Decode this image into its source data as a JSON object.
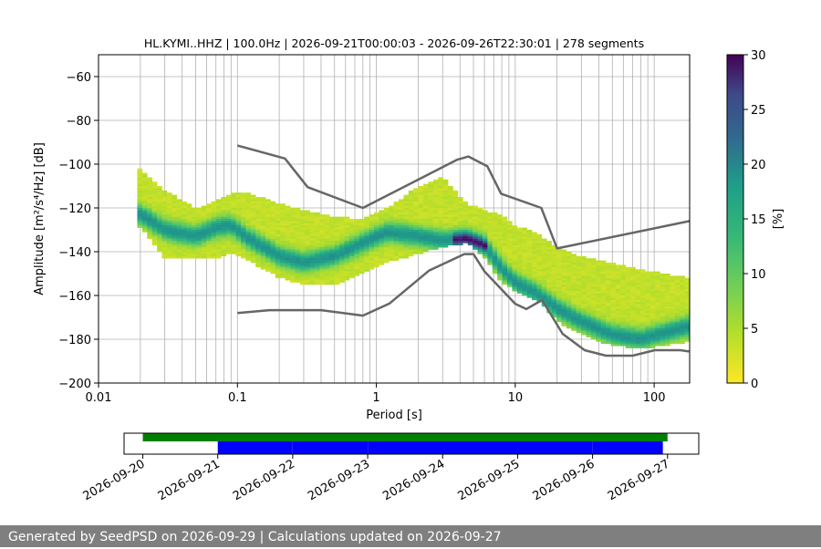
{
  "title": "HL.KYMI..HHZ | 100.0Hz | 2026-09-21T00:00:03 - 2026-09-26T22:30:01 | 278 segments",
  "footer": "Generated by SeedPSD on 2026-09-29 | Calculations updated on 2026-09-27",
  "colors": {
    "noise_model": "#666666",
    "coverage_total": "#008000",
    "coverage_segments": "#0000ff",
    "footer_bg": "#7f7f7f"
  },
  "chart_data": [
    {
      "type": "heatmap",
      "title": "HL.KYMI..HHZ | 100.0Hz | 2026-09-21T00:00:03 - 2026-09-26T22:30:01 | 278 segments",
      "xlabel": "Period [s]",
      "ylabel": "Amplitude [m²/s⁴/Hz] [dB]",
      "xscale": "log",
      "xlim": [
        0.01,
        180
      ],
      "ylim": [
        -200,
        -50
      ],
      "xticks": [
        0.01,
        0.1,
        1,
        10,
        100
      ],
      "xtick_labels": [
        "0.01",
        "0.1",
        "1",
        "10",
        "100"
      ],
      "yticks": [
        -200,
        -180,
        -160,
        -140,
        -120,
        -100,
        -80,
        -60
      ],
      "grid": true,
      "colorbar": {
        "label": "[%]",
        "range": [
          0,
          30
        ],
        "ticks": [
          0,
          5,
          10,
          15,
          20,
          25,
          30
        ],
        "colormap": "viridis_r"
      },
      "mode_curve": {
        "name": "mode",
        "period": [
          0.02,
          0.03,
          0.05,
          0.07,
          0.09,
          0.12,
          0.2,
          0.3,
          0.5,
          0.8,
          1.2,
          2,
          3,
          4.5,
          6,
          8,
          10,
          15,
          20,
          30,
          50,
          80,
          120,
          180
        ],
        "db": [
          -123,
          -130,
          -133,
          -129,
          -128,
          -134,
          -142,
          -145,
          -142,
          -136,
          -131,
          -133,
          -135,
          -134,
          -137,
          -148,
          -154,
          -160,
          -166,
          -172,
          -178,
          -180,
          -177,
          -174
        ]
      },
      "spread": {
        "period": [
          0.02,
          0.03,
          0.05,
          0.07,
          0.09,
          0.12,
          0.2,
          0.3,
          0.5,
          0.8,
          1.2,
          2,
          3,
          4.5,
          6,
          8,
          10,
          15,
          20,
          30,
          50,
          80,
          120,
          180
        ],
        "upper_db": [
          -102,
          -112,
          -120,
          -117,
          -113,
          -113,
          -118,
          -121,
          -124,
          -125,
          -120,
          -110,
          -106,
          -118,
          -121,
          -123,
          -128,
          -132,
          -138,
          -142,
          -145,
          -148,
          -150,
          -152
        ],
        "lower_db": [
          -129,
          -143,
          -143,
          -143,
          -141,
          -144,
          -152,
          -155,
          -155,
          -150,
          -145,
          -141,
          -138,
          -136,
          -143,
          -154,
          -158,
          -163,
          -172,
          -178,
          -183,
          -184,
          -183,
          -181
        ]
      },
      "noise_models": [
        {
          "name": "high_noise_model",
          "period": [
            0.1,
            0.22,
            0.32,
            0.8,
            3.8,
            4.6,
            6.3,
            7.9,
            15.4,
            20,
            354.8
          ],
          "db": [
            -91.5,
            -97.4,
            -110.5,
            -120,
            -98,
            -96.5,
            -101,
            -113.5,
            -120,
            -138.5,
            -126
          ]
        },
        {
          "name": "low_noise_model",
          "period": [
            0.1,
            0.17,
            0.4,
            0.8,
            1.24,
            2.4,
            4.3,
            5,
            6,
            10,
            12,
            15.6,
            21.9,
            31.6,
            45,
            70,
            101,
            154,
            178
          ],
          "db": [
            -168,
            -166.7,
            -166.7,
            -169.2,
            -163.7,
            -148.6,
            -141.1,
            -141.1,
            -149,
            -163.8,
            -166.2,
            -162.1,
            -177.5,
            -185,
            -187.5,
            -187.5,
            -185,
            -185,
            -185.6
          ]
        }
      ]
    },
    {
      "type": "timeline",
      "xlim": [
        "2026-09-19T18:00:00",
        "2026-09-27T10:00:00"
      ],
      "xticks": [
        "2026-09-20",
        "2026-09-21",
        "2026-09-22",
        "2026-09-23",
        "2026-09-24",
        "2026-09-25",
        "2026-09-26",
        "2026-09-27"
      ],
      "rows": [
        {
          "name": "coverage",
          "spans": [
            [
              "2026-09-20T00:00:00",
              "2026-09-27T00:00:00"
            ]
          ]
        },
        {
          "name": "segments",
          "spans": [
            [
              "2026-09-21T00:00:03",
              "2026-09-21T23:59:00"
            ],
            [
              "2026-09-22T00:01:00",
              "2026-09-22T23:59:00"
            ],
            [
              "2026-09-23T00:01:00",
              "2026-09-25T23:59:00"
            ],
            [
              "2026-09-26T00:01:00",
              "2026-09-26T22:30:01"
            ]
          ]
        }
      ]
    }
  ]
}
